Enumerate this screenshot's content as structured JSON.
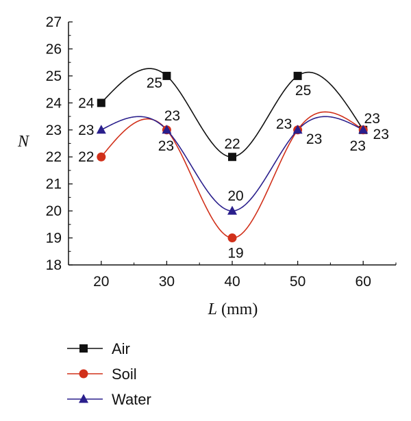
{
  "chart_data": {
    "type": "line",
    "x": [
      20,
      30,
      40,
      50,
      60
    ],
    "xlabel_var": "L",
    "xlabel_unit": " (mm)",
    "ylabel": "N",
    "xlim": [
      15,
      65
    ],
    "ylim": [
      18,
      27
    ],
    "xticks": [
      20,
      30,
      40,
      50,
      60
    ],
    "yticks": [
      18,
      19,
      20,
      21,
      22,
      23,
      24,
      25,
      26,
      27
    ],
    "grid": false,
    "legend_position": "bottom-left",
    "series": [
      {
        "name": "Air",
        "color": "#111111",
        "marker": "square",
        "values": [
          24,
          25,
          22,
          25,
          23
        ]
      },
      {
        "name": "Soil",
        "color": "#d1301a",
        "marker": "circle",
        "values": [
          22,
          23,
          19,
          23,
          23
        ]
      },
      {
        "name": "Water",
        "color": "#2a1f8c",
        "marker": "triangle",
        "values": [
          23,
          23,
          20,
          23,
          23
        ]
      }
    ]
  }
}
